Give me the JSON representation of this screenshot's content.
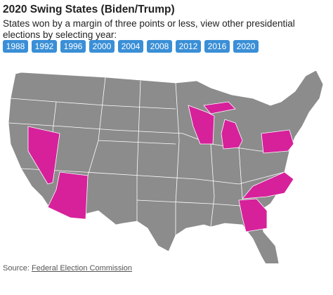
{
  "header": {
    "title": "2020 Swing States (Biden/Trump)",
    "subtitle": "States won by a margin of three points or less, view other presidential elections by selecting year:"
  },
  "years": [
    "1988",
    "1992",
    "1996",
    "2000",
    "2004",
    "2008",
    "2012",
    "2016",
    "2020"
  ],
  "footer": {
    "source_label": "Source:",
    "source_link": "Federal Election Commission"
  }
}
